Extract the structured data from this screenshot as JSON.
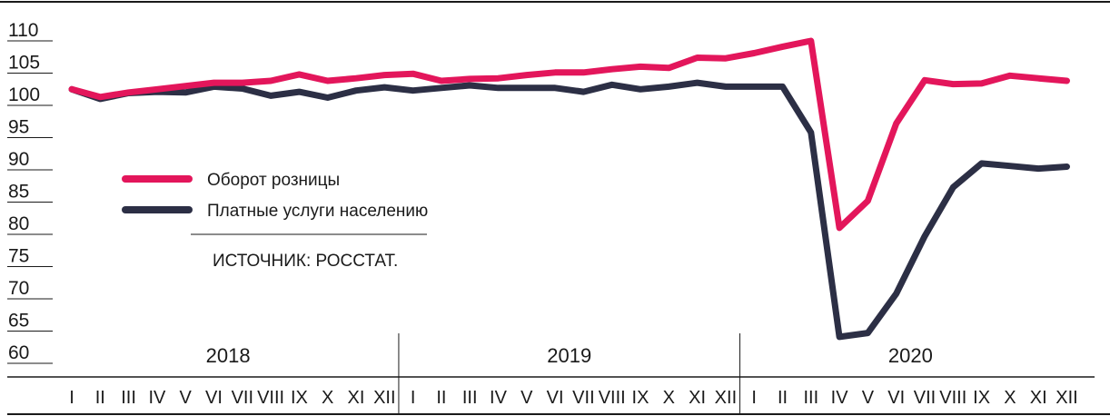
{
  "chart_data": {
    "type": "line",
    "source": "ИСТОЧНИК: РОССТАТ.",
    "ylim": [
      60,
      110
    ],
    "yticks": [
      "110",
      "105",
      "100",
      "95",
      "90",
      "85",
      "80",
      "75",
      "70",
      "65",
      "60"
    ],
    "years": [
      "2018",
      "2019",
      "2020"
    ],
    "months": [
      "I",
      "II",
      "III",
      "IV",
      "V",
      "VI",
      "VII",
      "VIII",
      "IX",
      "X",
      "XI",
      "XII"
    ],
    "legend_position": "left",
    "series": [
      {
        "name": "Оборот розницы",
        "color": "#e3165b",
        "values": [
          102.5,
          101.3,
          102.0,
          102.5,
          103.0,
          103.5,
          103.5,
          103.8,
          104.8,
          103.8,
          104.2,
          104.7,
          104.9,
          103.8,
          104.1,
          104.2,
          104.7,
          105.1,
          105.1,
          105.6,
          106.0,
          105.8,
          107.4,
          107.3,
          108.1,
          109.1,
          110.0,
          81.0,
          85.2,
          97.2,
          103.9,
          103.3,
          103.4,
          104.6,
          104.2,
          103.8
        ]
      },
      {
        "name": "Платные услуги населению",
        "color": "#2c2f45",
        "values": [
          102.5,
          101.0,
          101.9,
          102.1,
          102.0,
          102.9,
          102.6,
          101.5,
          102.1,
          101.2,
          102.3,
          102.8,
          102.3,
          102.7,
          103.1,
          102.7,
          102.7,
          102.7,
          102.1,
          103.2,
          102.5,
          102.9,
          103.5,
          102.9,
          102.9,
          102.9,
          95.8,
          64.1,
          64.7,
          70.8,
          79.7,
          87.3,
          91.0,
          90.6,
          90.2,
          90.5
        ]
      }
    ]
  }
}
